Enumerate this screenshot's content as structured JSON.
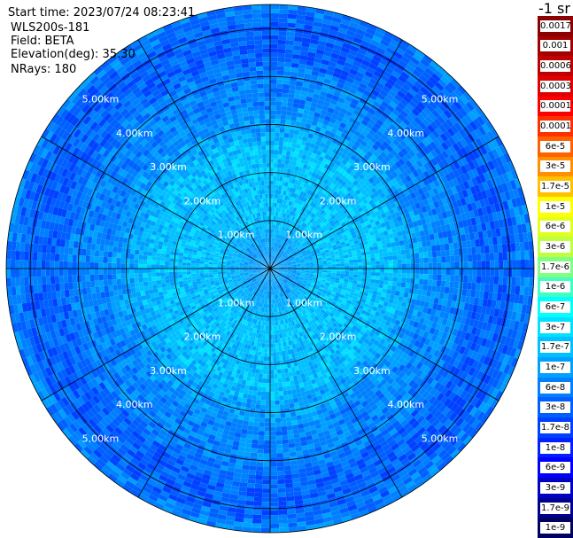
{
  "header": {
    "start_time": "Start time: 2023/07/24 08:23:41",
    "instrument": "WLS200s-181",
    "field": "Field: BETA",
    "elevation": "Elevation(deg): 35.30",
    "nrays": "NRays: 180"
  },
  "colorbar": {
    "unit": "-1 sr",
    "ticks": [
      "0.0017",
      "0.001",
      "0.0006",
      "0.0003",
      "0.00017",
      "0.0001",
      "6e-5",
      "3e-5",
      "1.7e-5",
      "1e-5",
      "6e-6",
      "3e-6",
      "1.7e-6",
      "1e-6",
      "6e-7",
      "3e-7",
      "1.7e-7",
      "1e-7",
      "6e-8",
      "3e-8",
      "1.7e-8",
      "1e-8",
      "6e-9",
      "3e-9",
      "1.7e-9",
      "1e-9"
    ],
    "colors": [
      "#8b0000",
      "#a30000",
      "#c00000",
      "#e00000",
      "#ff0000",
      "#ff3000",
      "#ff6000",
      "#ff9000",
      "#ffc000",
      "#ffff00",
      "#e0ff20",
      "#c0ff40",
      "#80ff80",
      "#40ffc0",
      "#00ffff",
      "#00e0ff",
      "#00c0ff",
      "#00a0ff",
      "#0080ff",
      "#0060ff",
      "#0040ff",
      "#0020ff",
      "#0000ff",
      "#0000c0",
      "#000090",
      "#000060"
    ]
  },
  "chart_data": {
    "type": "heatmap",
    "projection": "polar (PPI)",
    "field": "BETA",
    "max_range_km": 5.5,
    "range_rings_km": [
      1,
      2,
      3,
      4,
      5
    ],
    "ring_labels": [
      "1.00km",
      "2.00km",
      "3.00km",
      "4.00km",
      "5.00km"
    ],
    "azimuth_spokes_deg": [
      0,
      30,
      60,
      90,
      120,
      150,
      180,
      210,
      240,
      270,
      300,
      330
    ],
    "nrays": 180,
    "colorscale": "jet",
    "range_profile": {
      "range_km": [
        0.0,
        0.5,
        1.0,
        1.5,
        2.0,
        2.5,
        3.0,
        3.5,
        4.0,
        4.5,
        5.0,
        5.5
      ],
      "typical_beta": [
        "1e-7",
        "1e-7",
        "1.7e-7",
        "1.7e-7",
        "1.7e-7",
        "1.7e-7",
        "1e-7",
        "6e-8",
        "6e-8",
        "3e-8",
        "3e-8",
        "6e-8"
      ]
    }
  }
}
